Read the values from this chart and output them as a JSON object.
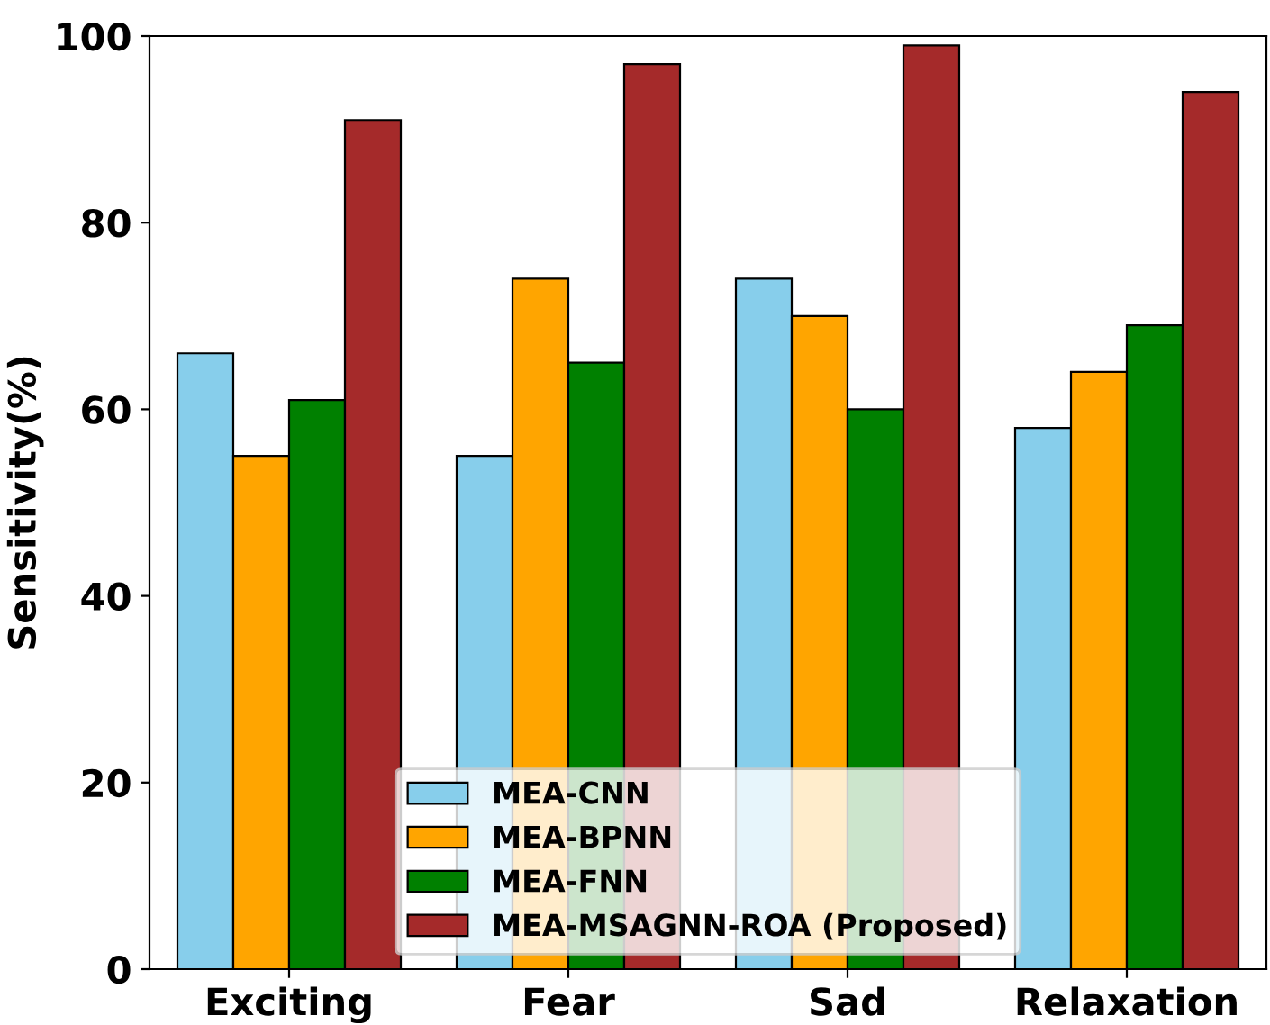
{
  "chart_data": {
    "type": "bar",
    "ylabel": "Sensitivity(%)",
    "categories": [
      "Exciting",
      "Fear",
      "Sad",
      "Relaxation"
    ],
    "series": [
      {
        "name": "MEA-CNN",
        "color": "#87ceeb",
        "values": [
          66,
          55,
          74,
          58
        ]
      },
      {
        "name": "MEA-BPNN",
        "color": "#ffa500",
        "values": [
          55,
          74,
          70,
          64
        ]
      },
      {
        "name": "MEA-FNN",
        "color": "#008000",
        "values": [
          61,
          65,
          60,
          69
        ]
      },
      {
        "name": "MEA-MSAGNN-ROA (Proposed)",
        "color": "#a52a2a",
        "values": [
          91,
          97,
          99,
          94
        ]
      }
    ],
    "ylim": [
      0,
      100
    ],
    "yticks": [
      0,
      20,
      40,
      60,
      80,
      100
    ],
    "grid": false,
    "legend": "bottom"
  }
}
